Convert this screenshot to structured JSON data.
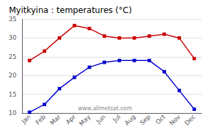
{
  "chart_data": {
    "type": "line",
    "title": "Myitkyina : temperatures (°C)",
    "categories": [
      "Jan",
      "Feb",
      "Mar",
      "Apr",
      "May",
      "Jun",
      "Jul",
      "Aug",
      "Sep",
      "Oct",
      "Nov",
      "Dec"
    ],
    "series": [
      {
        "color": "#cc0000",
        "marker": "square",
        "values": [
          24,
          26.5,
          30,
          33.3,
          32.5,
          30.5,
          30,
          30,
          30.5,
          31,
          30.0,
          24.5
        ]
      },
      {
        "color": "#0000cc",
        "marker": "square",
        "values": [
          10.2,
          12.3,
          16.5,
          19.5,
          22.2,
          23.5,
          24,
          24,
          24,
          21,
          16,
          11
        ]
      }
    ],
    "ylim": [
      10,
      35
    ],
    "yticks": [
      10,
      15,
      20,
      25,
      30,
      35
    ],
    "grid": true,
    "annotations": [
      "www.allmetsat.com"
    ]
  }
}
